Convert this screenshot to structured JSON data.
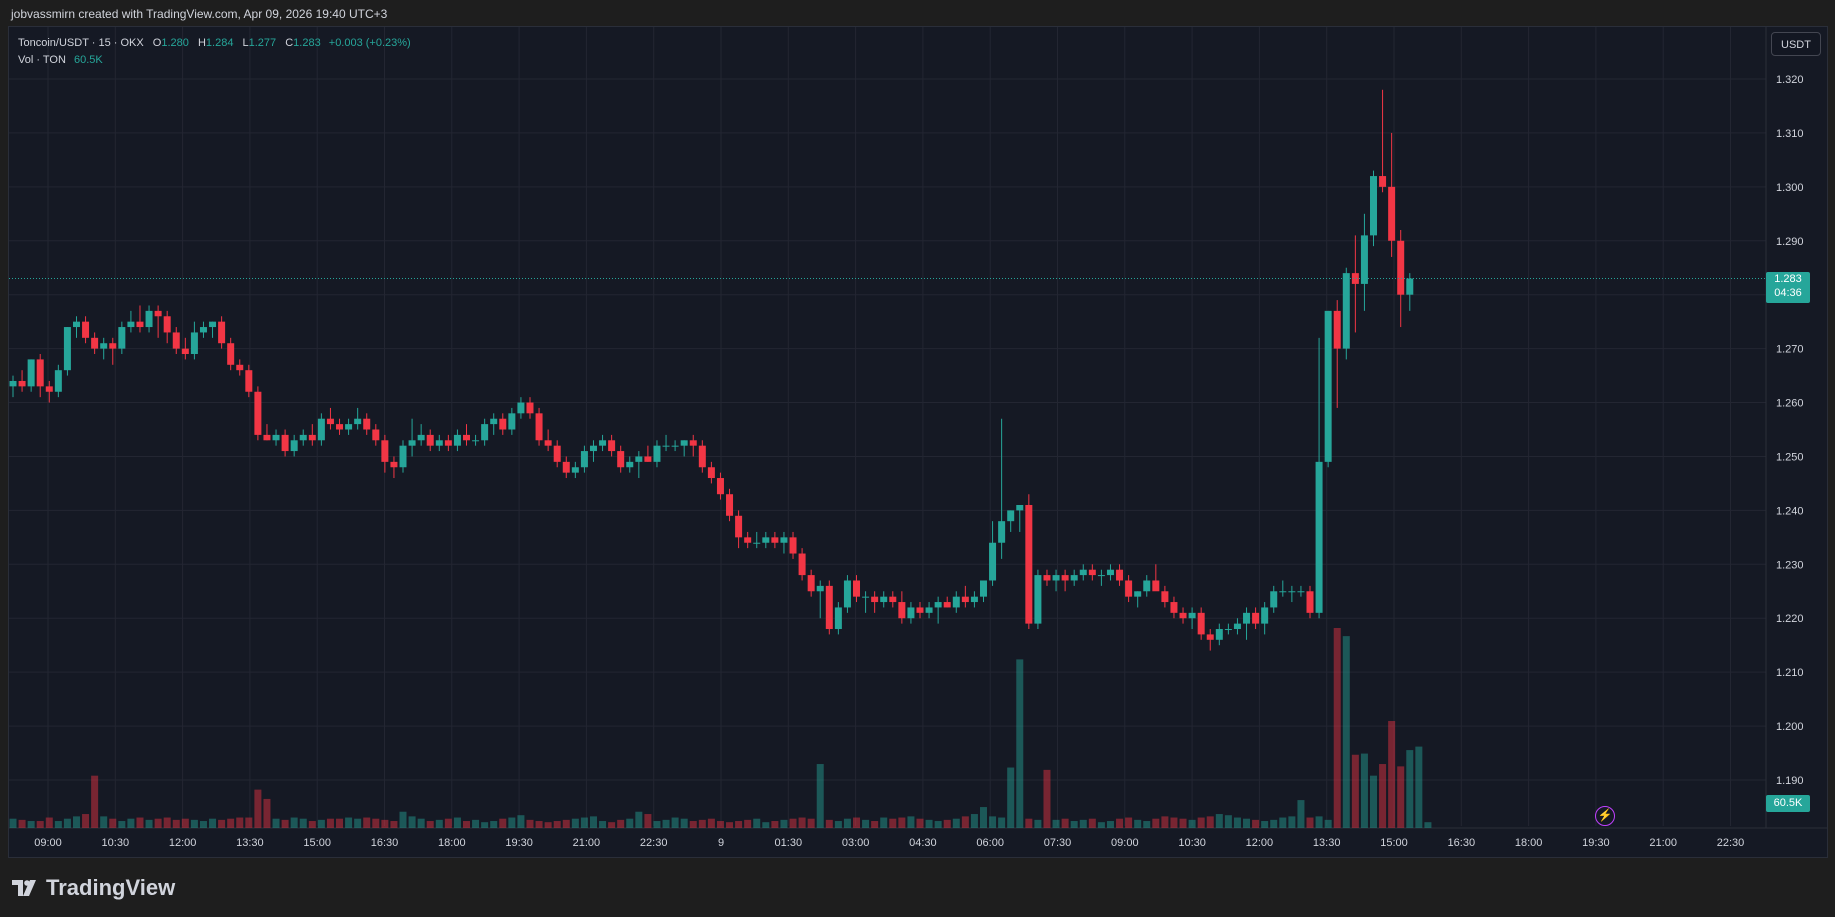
{
  "header": {
    "credit": "jobvassmirn created with TradingView.com, Apr 09, 2026 19:40 UTC+3"
  },
  "legend": {
    "symbol": "Toncoin/USDT · 15 · OKX",
    "open_label": "O",
    "open": "1.280",
    "high_label": "H",
    "high": "1.284",
    "low_label": "L",
    "low": "1.277",
    "close_label": "C",
    "close": "1.283",
    "change": "+0.003 (+0.23%)",
    "volume_label": "Vol · TON",
    "volume": "60.5K"
  },
  "currency_button": "USDT",
  "last_price": {
    "price": "1.283",
    "countdown": "04:36"
  },
  "volume_tag": "60.5K",
  "brand": "TradingView",
  "colors": {
    "up": "#26a69a",
    "down": "#f23645",
    "background": "#151924",
    "grid": "#232632",
    "text": "#d1d4dc"
  },
  "chart_data": {
    "type": "candlestick",
    "symbol": "Toncoin/USDT",
    "timeframe": "15",
    "exchange": "OKX",
    "ylim": [
      1.183,
      1.325
    ],
    "y_ticks": [
      "1.320",
      "1.310",
      "1.300",
      "1.290",
      "1.280",
      "1.270",
      "1.260",
      "1.250",
      "1.240",
      "1.230",
      "1.220",
      "1.210",
      "1.200",
      "1.190"
    ],
    "x_ticks": [
      "09:00",
      "10:30",
      "12:00",
      "13:30",
      "15:00",
      "16:30",
      "18:00",
      "19:30",
      "21:00",
      "22:30",
      "9",
      "01:30",
      "03:00",
      "04:30",
      "06:00",
      "07:30",
      "09:00",
      "10:30",
      "12:00",
      "13:30",
      "15:00",
      "16:30",
      "18:00",
      "19:30",
      "21:00",
      "22:30"
    ],
    "last_price": 1.283,
    "candles": [
      [
        1.263,
        1.265,
        1.261,
        1.264
      ],
      [
        1.264,
        1.266,
        1.262,
        1.263
      ],
      [
        1.263,
        1.268,
        1.262,
        1.268
      ],
      [
        1.268,
        1.269,
        1.261,
        1.263
      ],
      [
        1.263,
        1.264,
        1.26,
        1.262
      ],
      [
        1.262,
        1.267,
        1.261,
        1.266
      ],
      [
        1.266,
        1.274,
        1.265,
        1.274
      ],
      [
        1.274,
        1.276,
        1.272,
        1.275
      ],
      [
        1.275,
        1.276,
        1.271,
        1.272
      ],
      [
        1.272,
        1.273,
        1.269,
        1.27
      ],
      [
        1.27,
        1.272,
        1.268,
        1.271
      ],
      [
        1.271,
        1.272,
        1.267,
        1.27
      ],
      [
        1.27,
        1.275,
        1.269,
        1.274
      ],
      [
        1.274,
        1.277,
        1.273,
        1.275
      ],
      [
        1.275,
        1.278,
        1.273,
        1.274
      ],
      [
        1.274,
        1.278,
        1.273,
        1.277
      ],
      [
        1.277,
        1.278,
        1.272,
        1.276
      ],
      [
        1.276,
        1.277,
        1.271,
        1.273
      ],
      [
        1.273,
        1.274,
        1.269,
        1.27
      ],
      [
        1.27,
        1.272,
        1.268,
        1.269
      ],
      [
        1.269,
        1.275,
        1.268,
        1.273
      ],
      [
        1.273,
        1.275,
        1.272,
        1.274
      ],
      [
        1.274,
        1.275,
        1.272,
        1.275
      ],
      [
        1.275,
        1.276,
        1.27,
        1.271
      ],
      [
        1.271,
        1.272,
        1.266,
        1.267
      ],
      [
        1.267,
        1.268,
        1.265,
        1.266
      ],
      [
        1.266,
        1.267,
        1.261,
        1.262
      ],
      [
        1.262,
        1.263,
        1.253,
        1.254
      ],
      [
        1.254,
        1.256,
        1.253,
        1.253
      ],
      [
        1.253,
        1.255,
        1.252,
        1.254
      ],
      [
        1.254,
        1.255,
        1.25,
        1.251
      ],
      [
        1.251,
        1.254,
        1.25,
        1.253
      ],
      [
        1.253,
        1.255,
        1.252,
        1.254
      ],
      [
        1.254,
        1.256,
        1.252,
        1.253
      ],
      [
        1.253,
        1.258,
        1.252,
        1.257
      ],
      [
        1.257,
        1.259,
        1.255,
        1.256
      ],
      [
        1.256,
        1.257,
        1.254,
        1.255
      ],
      [
        1.255,
        1.257,
        1.254,
        1.256
      ],
      [
        1.256,
        1.259,
        1.255,
        1.257
      ],
      [
        1.257,
        1.258,
        1.254,
        1.255
      ],
      [
        1.255,
        1.256,
        1.252,
        1.253
      ],
      [
        1.253,
        1.254,
        1.247,
        1.249
      ],
      [
        1.249,
        1.25,
        1.246,
        1.248
      ],
      [
        1.248,
        1.253,
        1.247,
        1.252
      ],
      [
        1.252,
        1.257,
        1.25,
        1.253
      ],
      [
        1.253,
        1.256,
        1.252,
        1.254
      ],
      [
        1.254,
        1.255,
        1.251,
        1.252
      ],
      [
        1.252,
        1.254,
        1.251,
        1.253
      ],
      [
        1.253,
        1.254,
        1.251,
        1.252
      ],
      [
        1.252,
        1.255,
        1.251,
        1.254
      ],
      [
        1.254,
        1.256,
        1.252,
        1.253
      ],
      [
        1.253,
        1.254,
        1.252,
        1.253
      ],
      [
        1.253,
        1.257,
        1.252,
        1.256
      ],
      [
        1.256,
        1.258,
        1.254,
        1.257
      ],
      [
        1.257,
        1.258,
        1.254,
        1.255
      ],
      [
        1.255,
        1.259,
        1.254,
        1.258
      ],
      [
        1.258,
        1.261,
        1.257,
        1.26
      ],
      [
        1.26,
        1.261,
        1.257,
        1.258
      ],
      [
        1.258,
        1.259,
        1.252,
        1.253
      ],
      [
        1.253,
        1.255,
        1.251,
        1.252
      ],
      [
        1.252,
        1.253,
        1.248,
        1.249
      ],
      [
        1.249,
        1.25,
        1.246,
        1.247
      ],
      [
        1.247,
        1.249,
        1.246,
        1.248
      ],
      [
        1.248,
        1.252,
        1.247,
        1.251
      ],
      [
        1.251,
        1.253,
        1.249,
        1.252
      ],
      [
        1.252,
        1.254,
        1.251,
        1.253
      ],
      [
        1.253,
        1.254,
        1.25,
        1.251
      ],
      [
        1.251,
        1.252,
        1.247,
        1.248
      ],
      [
        1.248,
        1.25,
        1.247,
        1.249
      ],
      [
        1.249,
        1.251,
        1.246,
        1.25
      ],
      [
        1.25,
        1.252,
        1.249,
        1.249
      ],
      [
        1.249,
        1.253,
        1.248,
        1.252
      ],
      [
        1.252,
        1.254,
        1.251,
        1.252
      ],
      [
        1.252,
        1.253,
        1.251,
        1.252
      ],
      [
        1.252,
        1.253,
        1.25,
        1.253
      ],
      [
        1.253,
        1.254,
        1.25,
        1.252
      ],
      [
        1.252,
        1.253,
        1.247,
        1.248
      ],
      [
        1.248,
        1.249,
        1.245,
        1.246
      ],
      [
        1.246,
        1.247,
        1.242,
        1.243
      ],
      [
        1.243,
        1.244,
        1.238,
        1.239
      ],
      [
        1.239,
        1.24,
        1.233,
        1.235
      ],
      [
        1.235,
        1.236,
        1.233,
        1.234
      ],
      [
        1.234,
        1.236,
        1.233,
        1.234
      ],
      [
        1.234,
        1.236,
        1.233,
        1.235
      ],
      [
        1.235,
        1.236,
        1.233,
        1.234
      ],
      [
        1.234,
        1.236,
        1.232,
        1.235
      ],
      [
        1.235,
        1.236,
        1.231,
        1.232
      ],
      [
        1.232,
        1.233,
        1.227,
        1.228
      ],
      [
        1.228,
        1.229,
        1.224,
        1.225
      ],
      [
        1.225,
        1.227,
        1.22,
        1.226
      ],
      [
        1.226,
        1.227,
        1.217,
        1.218
      ],
      [
        1.218,
        1.223,
        1.217,
        1.222
      ],
      [
        1.222,
        1.228,
        1.221,
        1.227
      ],
      [
        1.227,
        1.228,
        1.223,
        1.224
      ],
      [
        1.224,
        1.225,
        1.221,
        1.224
      ],
      [
        1.224,
        1.225,
        1.221,
        1.223
      ],
      [
        1.223,
        1.225,
        1.222,
        1.224
      ],
      [
        1.224,
        1.225,
        1.222,
        1.223
      ],
      [
        1.223,
        1.225,
        1.219,
        1.22
      ],
      [
        1.22,
        1.223,
        1.219,
        1.222
      ],
      [
        1.222,
        1.223,
        1.22,
        1.221
      ],
      [
        1.221,
        1.223,
        1.22,
        1.222
      ],
      [
        1.222,
        1.224,
        1.219,
        1.223
      ],
      [
        1.223,
        1.224,
        1.222,
        1.222
      ],
      [
        1.222,
        1.225,
        1.221,
        1.224
      ],
      [
        1.224,
        1.226,
        1.222,
        1.223
      ],
      [
        1.223,
        1.225,
        1.222,
        1.224
      ],
      [
        1.224,
        1.227,
        1.223,
        1.227
      ],
      [
        1.227,
        1.238,
        1.226,
        1.234
      ],
      [
        1.234,
        1.257,
        1.231,
        1.238
      ],
      [
        1.238,
        1.24,
        1.236,
        1.24
      ],
      [
        1.24,
        1.241,
        1.236,
        1.241
      ],
      [
        1.241,
        1.243,
        1.218,
        1.219
      ],
      [
        1.219,
        1.229,
        1.218,
        1.228
      ],
      [
        1.228,
        1.229,
        1.226,
        1.227
      ],
      [
        1.227,
        1.229,
        1.225,
        1.228
      ],
      [
        1.228,
        1.229,
        1.225,
        1.227
      ],
      [
        1.227,
        1.229,
        1.226,
        1.228
      ],
      [
        1.228,
        1.23,
        1.227,
        1.229
      ],
      [
        1.229,
        1.23,
        1.227,
        1.228
      ],
      [
        1.228,
        1.229,
        1.226,
        1.228
      ],
      [
        1.228,
        1.23,
        1.227,
        1.229
      ],
      [
        1.229,
        1.23,
        1.226,
        1.227
      ],
      [
        1.227,
        1.228,
        1.223,
        1.224
      ],
      [
        1.224,
        1.225,
        1.222,
        1.225
      ],
      [
        1.225,
        1.228,
        1.224,
        1.227
      ],
      [
        1.227,
        1.23,
        1.226,
        1.225
      ],
      [
        1.225,
        1.226,
        1.222,
        1.223
      ],
      [
        1.223,
        1.224,
        1.22,
        1.221
      ],
      [
        1.221,
        1.222,
        1.219,
        1.22
      ],
      [
        1.22,
        1.222,
        1.218,
        1.221
      ],
      [
        1.221,
        1.222,
        1.216,
        1.217
      ],
      [
        1.217,
        1.218,
        1.214,
        1.216
      ],
      [
        1.216,
        1.219,
        1.215,
        1.218
      ],
      [
        1.218,
        1.219,
        1.217,
        1.218
      ],
      [
        1.218,
        1.22,
        1.217,
        1.219
      ],
      [
        1.219,
        1.222,
        1.216,
        1.221
      ],
      [
        1.221,
        1.222,
        1.218,
        1.219
      ],
      [
        1.219,
        1.223,
        1.217,
        1.222
      ],
      [
        1.222,
        1.226,
        1.221,
        1.225
      ],
      [
        1.225,
        1.227,
        1.224,
        1.225
      ],
      [
        1.225,
        1.226,
        1.223,
        1.225
      ],
      [
        1.225,
        1.226,
        1.224,
        1.225
      ],
      [
        1.225,
        1.226,
        1.22,
        1.221
      ],
      [
        1.221,
        1.272,
        1.22,
        1.249
      ],
      [
        1.249,
        1.277,
        1.248,
        1.277
      ],
      [
        1.277,
        1.279,
        1.259,
        1.27
      ],
      [
        1.27,
        1.285,
        1.268,
        1.284
      ],
      [
        1.284,
        1.291,
        1.273,
        1.282
      ],
      [
        1.282,
        1.295,
        1.277,
        1.291
      ],
      [
        1.291,
        1.303,
        1.289,
        1.302
      ],
      [
        1.302,
        1.318,
        1.299,
        1.3
      ],
      [
        1.3,
        1.31,
        1.287,
        1.29
      ],
      [
        1.29,
        1.292,
        1.274,
        1.28
      ],
      [
        1.28,
        1.284,
        1.277,
        1.283
      ]
    ],
    "volumes": [
      8,
      7,
      6,
      6,
      9,
      6,
      8,
      10,
      12,
      45,
      10,
      8,
      6,
      8,
      9,
      7,
      8,
      9,
      7,
      8,
      7,
      6,
      8,
      7,
      8,
      9,
      9,
      33,
      25,
      8,
      7,
      9,
      8,
      6,
      7,
      8,
      8,
      9,
      8,
      9,
      8,
      7,
      6,
      14,
      10,
      8,
      6,
      7,
      8,
      9,
      6,
      7,
      5,
      6,
      8,
      9,
      11,
      7,
      6,
      5,
      6,
      7,
      8,
      9,
      10,
      6,
      5,
      7,
      8,
      14,
      12,
      6,
      7,
      9,
      8,
      6,
      7,
      8,
      6,
      5,
      6,
      7,
      8,
      5,
      6,
      7,
      8,
      9,
      8,
      55,
      7,
      6,
      8,
      9,
      7,
      6,
      9,
      8,
      9,
      10,
      8,
      7,
      6,
      7,
      8,
      10,
      12,
      18,
      10,
      9,
      52,
      145,
      8,
      7,
      50,
      7,
      8,
      6,
      7,
      8,
      5,
      6,
      8,
      9,
      7,
      6,
      8,
      10,
      9,
      8,
      7,
      9,
      10,
      12,
      11,
      9,
      8,
      7,
      6,
      7,
      9,
      10,
      24,
      9,
      10,
      7,
      172,
      165,
      63,
      64,
      45,
      55,
      92,
      53,
      67,
      70,
      5
    ]
  }
}
